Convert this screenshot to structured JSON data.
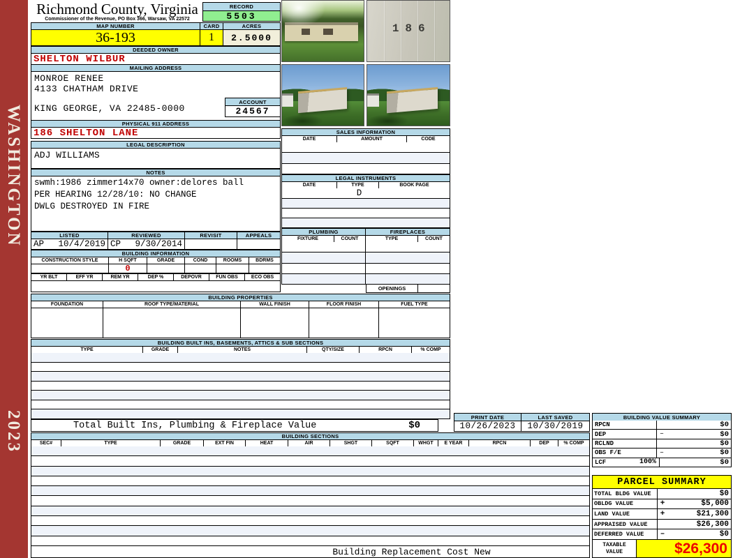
{
  "colors": {
    "sidebar_maroon": "#A43631",
    "bar_blue": "#B5D9E8",
    "highlight_yellow": "#FFFF00",
    "record_green": "#90EE90",
    "acres_beige": "#F2EFDB",
    "accent_red": "#C00000",
    "taxable_red": "#EE0000",
    "stripe_blue": "#EFF3FA"
  },
  "sidebar": {
    "county_name": "WASHINGTON",
    "year": "2023"
  },
  "header": {
    "title": "Richmond County, Virginia",
    "subtitle": "Commissioner of the Revenue, PO Box 366, Warsaw, VA 22572",
    "record_label": "RECORD",
    "record_value": "5503",
    "map_number_label": "MAP NUMBER",
    "map_number_value": "36-193",
    "card_label": "CARD",
    "card_value": "1",
    "acres_label": "ACRES",
    "acres_value": "2.5000"
  },
  "owner": {
    "deeded_owner_label": "DEEDED OWNER",
    "deeded_owner": "SHELTON WILBUR",
    "mailing_address_label": "MAILING ADDRESS",
    "mailing_line1": "MONROE RENEE",
    "mailing_line2": "4133 CHATHAM DRIVE",
    "mailing_line3": "KING GEORGE, VA 22485-0000",
    "account_label": "ACCOUNT",
    "account_value": "24567",
    "physical_address_label": "PHYSICAL 911 ADDRESS",
    "physical_address": "186 SHELTON LANE",
    "legal_description_label": "LEGAL DESCRIPTION",
    "legal_description": "ADJ WILLIAMS"
  },
  "notes": {
    "label": "NOTES",
    "line1": "swmh:1986 zimmer14x70 owner:delores ball",
    "line2": "PER HEARING 12/28/10: NO CHANGE",
    "line3": "DWLG DESTROYED IN FIRE"
  },
  "visits": {
    "headers": [
      "LISTED",
      "REVIEWED",
      "REVISIT",
      "APPEALS"
    ],
    "listed_by": "AP",
    "listed_date": "10/4/2019",
    "reviewed_by": "CP",
    "reviewed_date": "9/30/2014"
  },
  "building_information": {
    "title": "BUILDING INFORMATION",
    "row1_headers": [
      "CONSTRUCTION STYLE",
      "H SQFT",
      "GRADE",
      "COND",
      "ROOMS",
      "BDRMS"
    ],
    "h_sqft_value": "0",
    "row2_headers": [
      "YR BLT",
      "EFF YR",
      "REM YR",
      "DEP %",
      "DEPOVR",
      "FUN OBS",
      "ECO OBS"
    ]
  },
  "photos": {
    "house_number": "186"
  },
  "sales": {
    "title": "SALES INFORMATION",
    "headers": [
      "DATE",
      "AMOUNT",
      "CODE"
    ]
  },
  "legal_instruments": {
    "title": "LEGAL INSTRUMENTS",
    "headers": [
      "DATE",
      "TYPE",
      "BOOK PAGE"
    ],
    "row1_type": "D"
  },
  "plumbing": {
    "title": "PLUMBING",
    "headers": [
      "FIXTURE",
      "COUNT"
    ]
  },
  "fireplaces": {
    "title": "FIREPLACES",
    "headers": [
      "TYPE",
      "COUNT"
    ],
    "openings_label": "OPENINGS"
  },
  "building_properties": {
    "title": "BUILDING PROPERTIES",
    "headers": [
      "FOUNDATION",
      "ROOF TYPE/MATERIAL",
      "WALL FINISH",
      "FLOOR FINISH",
      "FUEL TYPE"
    ]
  },
  "built_ins": {
    "title": "BUILDING BUILT INS, BASEMENTS, ATTICS & SUB SECTIONS",
    "headers": [
      "TYPE",
      "GRADE",
      "NOTES",
      "QTY/SIZE",
      "RPCN",
      "% COMP"
    ],
    "total_label": "Total Built Ins, Plumbing & Fireplace Value",
    "total_value": "$0"
  },
  "building_sections": {
    "title": "BUILDING SECTIONS",
    "headers": [
      "SEC#",
      "TYPE",
      "GRADE",
      "EXT FIN",
      "HEAT",
      "AIR",
      "SHGT",
      "SQFT",
      "WHGT",
      "E YEAR",
      "RPCN",
      "DEP",
      "% COMP"
    ],
    "footer_note": "Building Replacement Cost New"
  },
  "print_info": {
    "print_date_label": "PRINT DATE",
    "print_date": "10/26/2023",
    "last_saved_label": "LAST SAVED",
    "last_saved": "10/30/2019"
  },
  "building_value_summary": {
    "title": "BUILDING VALUE SUMMARY",
    "rows": [
      {
        "label": "RPCN",
        "suffix": "",
        "op": "",
        "value": "$0"
      },
      {
        "label": "DEP",
        "suffix": "",
        "op": "–",
        "value": "$0"
      },
      {
        "label": "RCLND",
        "suffix": "",
        "op": "",
        "value": "$0"
      },
      {
        "label": "OBS F/E",
        "suffix": "",
        "op": "–",
        "value": "$0"
      },
      {
        "label": "LCF",
        "suffix": "100%",
        "op": "",
        "value": "$0"
      }
    ]
  },
  "parcel_summary": {
    "title": "PARCEL SUMMARY",
    "rows": [
      {
        "label": "TOTAL BLDG VALUE",
        "op": "",
        "value": "$0"
      },
      {
        "label": "OBLDG VALUE",
        "op": "+",
        "value": "$5,000"
      },
      {
        "label": "LAND VALUE",
        "op": "+",
        "value": "$21,300"
      },
      {
        "label": "APPRAISED VALUE",
        "op": "",
        "value": "$26,300"
      },
      {
        "label": "DEFERRED VALUE",
        "op": "–",
        "value": "$0"
      }
    ],
    "taxable_label_line1": "TAXABLE",
    "taxable_label_line2": "VALUE",
    "taxable_value": "$26,300"
  }
}
